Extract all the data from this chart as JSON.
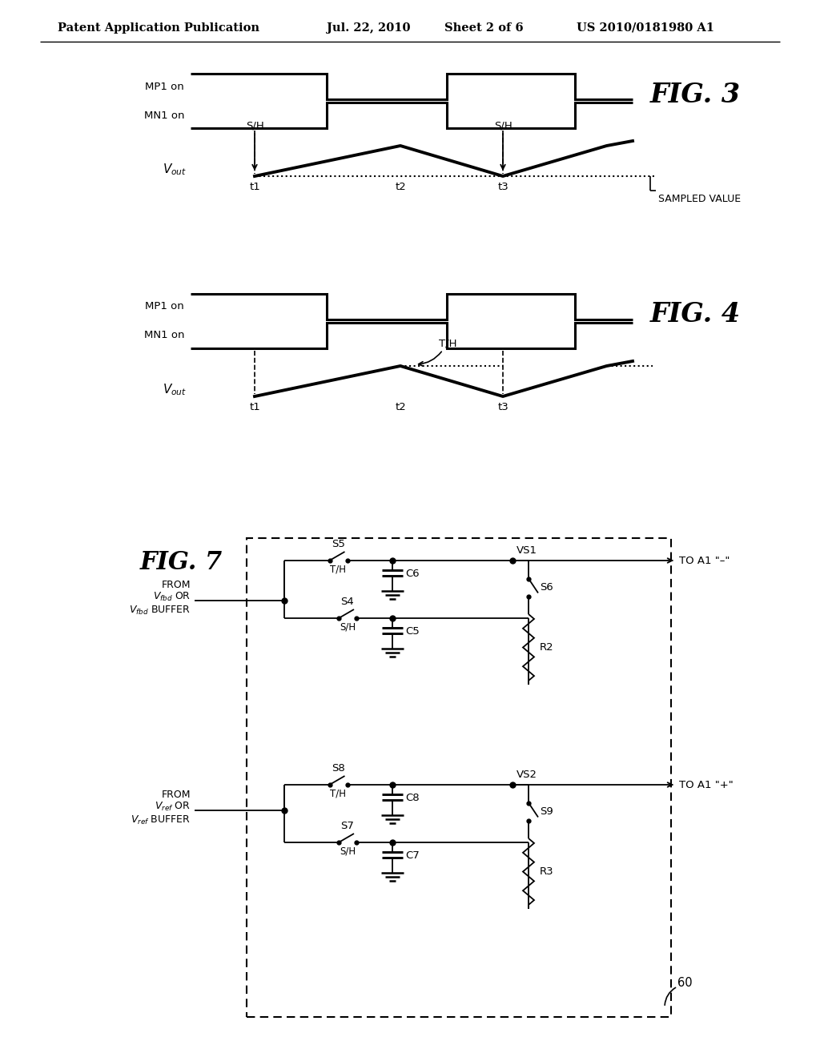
{
  "header_left": "Patent Application Publication",
  "header_mid1": "Jul. 22, 2010",
  "header_mid2": "Sheet 2 of 6",
  "header_right": "US 2010/0181980 A1",
  "bg": "#ffffff",
  "lc": "#000000"
}
